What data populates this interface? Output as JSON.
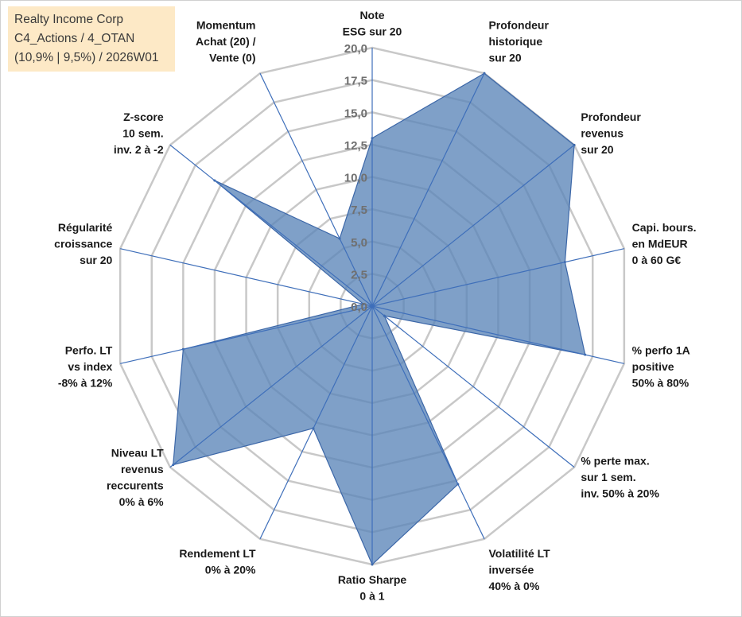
{
  "title_box": {
    "line1": "Realty Income Corp",
    "line2": "C4_Actions / 4_OTAN",
    "line3": "(10,9% | 9,5%) / 2026W01"
  },
  "colors": {
    "fill": "#5b85b8",
    "stroke": "#3c67a8",
    "grid": "#c8c8c8",
    "spoke": "#3f6fba",
    "title_bg": "#fde9c6"
  },
  "chart_data": {
    "type": "radar",
    "rmin": 0,
    "rmax": 20,
    "ticks": [
      "0,0",
      "2,5",
      "5,0",
      "7,5",
      "10,0",
      "12,5",
      "15,0",
      "17,5",
      "20,0"
    ],
    "categories": [
      [
        "Note",
        "ESG sur 20"
      ],
      [
        "Profondeur",
        "historique",
        "sur 20"
      ],
      [
        "Profondeur",
        "revenus",
        "sur 20"
      ],
      [
        "Capi. bours.",
        "en MdEUR",
        "0 à 60 G€"
      ],
      [
        "% perfo 1A",
        "positive",
        "50% à 80%"
      ],
      [
        "% perte max.",
        "sur 1 sem.",
        "inv. 50% à 20%"
      ],
      [
        "Volatilité LT",
        "inversée",
        "40% à 0%"
      ],
      [
        "Ratio Sharpe",
        "0 à 1"
      ],
      [
        "Rendement LT",
        "0% à 20%"
      ],
      [
        "Niveau LT",
        "revenus",
        "reccurents",
        "0% à 6%"
      ],
      [
        "Perfo. LT",
        "vs index",
        "-8% à 12%"
      ],
      [
        "Régularité",
        "croissance",
        "sur 20"
      ],
      [
        "Z-score",
        "10 sem.",
        "inv. 2 à -2"
      ],
      [
        "Momentum",
        "Achat (20) /",
        "Vente (0)"
      ]
    ],
    "series": [
      {
        "name": "Realty Income Corp",
        "values": [
          13,
          20,
          20,
          15.3,
          16.9,
          1.2,
          15.3,
          20,
          10.5,
          19.7,
          15,
          0.7,
          15.6,
          5.8
        ]
      }
    ]
  }
}
